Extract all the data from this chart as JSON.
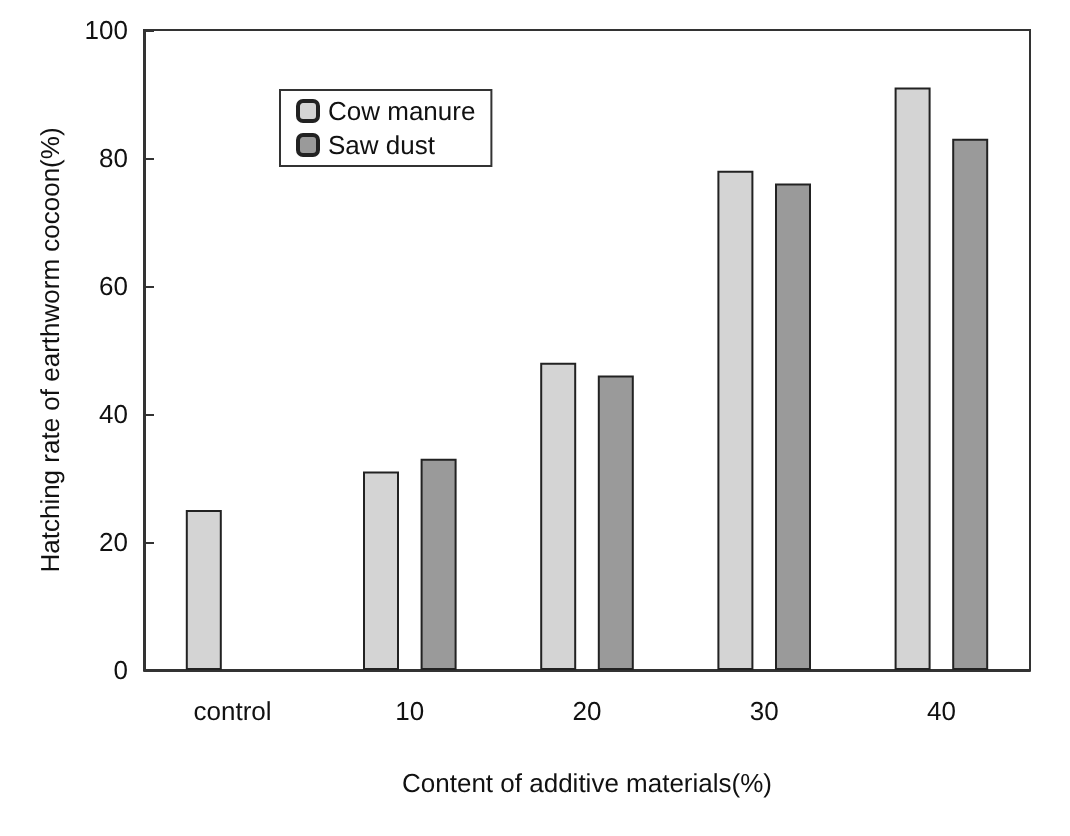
{
  "chart_data": {
    "type": "bar",
    "xlabel": "Content of additive materials(%)",
    "ylabel": "Hatching rate of earthworm cocoon(%)",
    "categories": [
      "control",
      "10",
      "20",
      "30",
      "40"
    ],
    "series": [
      {
        "name": "Cow manure",
        "color": "#d4d4d4",
        "values": [
          25,
          31,
          48,
          78,
          91
        ]
      },
      {
        "name": "Saw dust",
        "color": "#9a9a9a",
        "values": [
          null,
          33,
          46,
          76,
          83
        ]
      }
    ],
    "ylim": [
      0,
      100
    ],
    "yticks": [
      0,
      20,
      40,
      60,
      80,
      100
    ],
    "grid": false,
    "legend": "top left"
  }
}
